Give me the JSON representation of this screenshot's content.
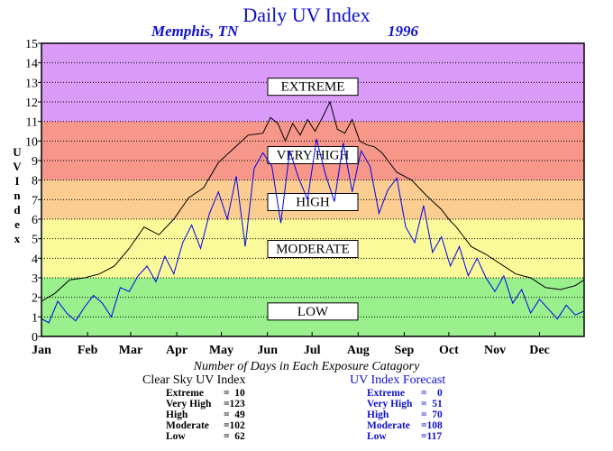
{
  "chart_data": {
    "type": "line",
    "title": "Daily UV Index",
    "subtitle_left": "Memphis, TN",
    "subtitle_right": "1996",
    "ylabel": "UV Index",
    "ylim": [
      0,
      15
    ],
    "yticks": [
      "0",
      "1",
      "2",
      "3",
      "4",
      "5",
      "6",
      "7",
      "8",
      "9",
      "10",
      "11",
      "12",
      "13",
      "14",
      "15"
    ],
    "xlim": [
      1,
      366
    ],
    "months": [
      "Jan",
      "Feb",
      "Mar",
      "Apr",
      "May",
      "Jun",
      "Jul",
      "Aug",
      "Sep",
      "Oct",
      "Nov",
      "Dec"
    ],
    "month_start_days": [
      1,
      32,
      61,
      92,
      122,
      153,
      183,
      214,
      245,
      275,
      306,
      336
    ],
    "grid": true,
    "bands": [
      {
        "label": "LOW",
        "from": 0,
        "to": 3,
        "color": "#99f08c",
        "label_value": 1.3
      },
      {
        "label": "MODERATE",
        "from": 3,
        "to": 6,
        "color": "#fbfa9a",
        "label_value": 4.5
      },
      {
        "label": "HIGH",
        "from": 6,
        "to": 8,
        "color": "#fccd90",
        "label_value": 6.9
      },
      {
        "label": "VERY HIGH",
        "from": 8,
        "to": 11,
        "color": "#f6978a",
        "label_value": 9.3
      },
      {
        "label": "EXTREME",
        "from": 11,
        "to": 15,
        "color": "#da9af7",
        "label_value": 12.8
      }
    ],
    "series": [
      {
        "name": "Clear Sky UV Index",
        "color": "#000000",
        "x": [
          1,
          10,
          20,
          30,
          40,
          50,
          60,
          70,
          80,
          90,
          100,
          110,
          120,
          130,
          140,
          150,
          155,
          160,
          165,
          170,
          175,
          180,
          185,
          190,
          195,
          200,
          205,
          210,
          215,
          220,
          225,
          230,
          240,
          250,
          260,
          270,
          275,
          280,
          285,
          290,
          300,
          310,
          320,
          330,
          340,
          350,
          360,
          366
        ],
        "y": [
          1.8,
          2.2,
          2.9,
          3.0,
          3.2,
          3.6,
          4.5,
          5.6,
          5.2,
          6.0,
          7.1,
          7.6,
          8.9,
          9.6,
          10.3,
          10.4,
          11.2,
          10.9,
          10.0,
          10.9,
          10.3,
          11.1,
          10.5,
          11.2,
          12.0,
          10.6,
          10.4,
          11.1,
          10.0,
          9.8,
          9.7,
          9.4,
          8.4,
          8.0,
          7.2,
          6.5,
          6.0,
          5.6,
          5.1,
          4.6,
          4.2,
          3.7,
          3.2,
          3.0,
          2.5,
          2.4,
          2.6,
          2.9
        ]
      },
      {
        "name": "UV Index Forecast",
        "color": "#0000ee",
        "x": [
          1,
          6,
          12,
          18,
          24,
          30,
          36,
          42,
          48,
          54,
          60,
          66,
          72,
          78,
          84,
          90,
          96,
          102,
          108,
          114,
          120,
          126,
          132,
          138,
          144,
          150,
          156,
          162,
          168,
          174,
          180,
          186,
          192,
          198,
          204,
          210,
          216,
          222,
          228,
          234,
          240,
          246,
          252,
          258,
          264,
          270,
          276,
          282,
          288,
          294,
          300,
          306,
          312,
          318,
          324,
          330,
          336,
          342,
          348,
          354,
          360,
          366
        ],
        "y": [
          0.9,
          0.7,
          1.8,
          1.2,
          0.8,
          1.5,
          2.1,
          1.7,
          1.0,
          2.5,
          2.3,
          3.1,
          3.6,
          2.8,
          4.1,
          3.2,
          4.8,
          5.7,
          4.5,
          6.3,
          7.4,
          6.0,
          8.2,
          4.6,
          8.6,
          9.4,
          8.7,
          5.8,
          9.5,
          8.1,
          7.0,
          10.1,
          8.3,
          6.9,
          9.9,
          7.4,
          9.5,
          8.7,
          6.3,
          7.5,
          8.1,
          5.6,
          4.8,
          6.7,
          4.3,
          5.1,
          3.6,
          4.6,
          3.1,
          4.0,
          3.0,
          2.3,
          3.1,
          1.7,
          2.4,
          1.2,
          1.9,
          1.4,
          0.9,
          1.6,
          1.1,
          1.3
        ]
      }
    ]
  },
  "footer": {
    "title": "Number of Days in Each Exposure Catagory",
    "clear_sky": {
      "heading": "Clear Sky UV Index",
      "rows": [
        {
          "label": "Extreme",
          "value": "=  10"
        },
        {
          "label": "Very High",
          "value": "=123"
        },
        {
          "label": "High",
          "value": "=  49"
        },
        {
          "label": "Moderate",
          "value": "=102"
        },
        {
          "label": "Low",
          "value": "=  62"
        }
      ]
    },
    "forecast": {
      "heading": "UV Index Forecast",
      "rows": [
        {
          "label": "Extreme",
          "value": "=    0"
        },
        {
          "label": "Very High",
          "value": "=  51"
        },
        {
          "label": "High",
          "value": "=  70"
        },
        {
          "label": "Moderate",
          "value": "=108"
        },
        {
          "label": "Low",
          "value": "=117"
        }
      ]
    }
  }
}
